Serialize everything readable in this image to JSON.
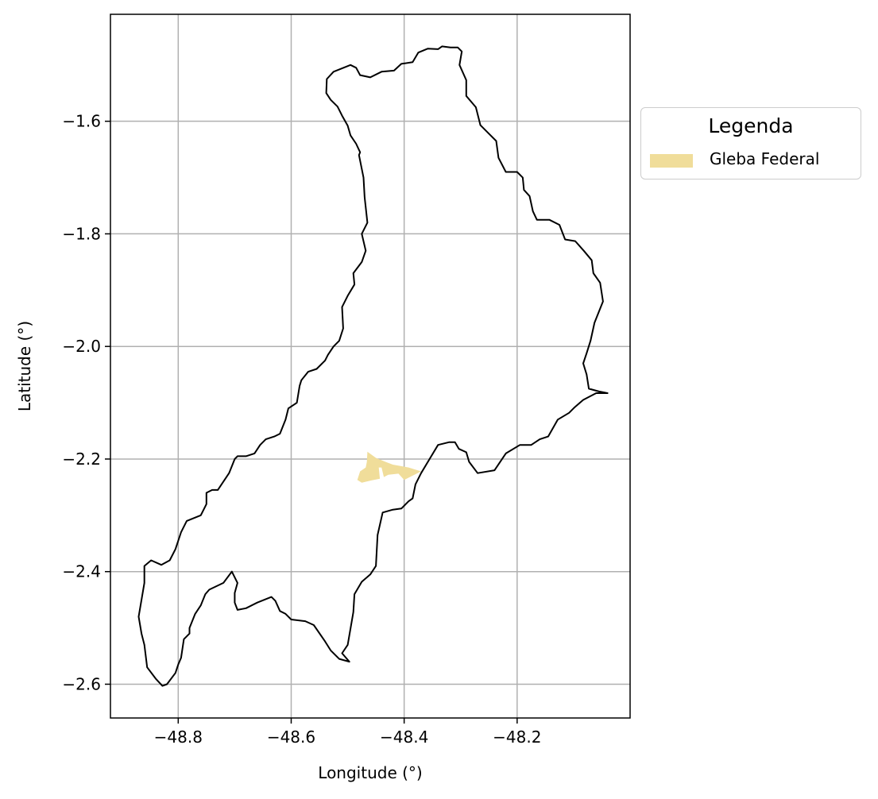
{
  "chart_data": {
    "type": "map",
    "xlabel": "Longitude (°)",
    "ylabel": "Latitude (°)",
    "xlim": [
      -48.92,
      -48.0
    ],
    "ylim": [
      -2.66,
      -1.41
    ],
    "x_ticks": [
      -48.8,
      -48.6,
      -48.4,
      -48.2
    ],
    "y_ticks": [
      -1.6,
      -1.8,
      -2.0,
      -2.2,
      -2.4,
      -2.6
    ],
    "x_tick_labels": [
      "−48.8",
      "−48.6",
      "−48.4",
      "−48.2"
    ],
    "y_tick_labels": [
      "−1.6",
      "−1.8",
      "−2.0",
      "−2.2",
      "−2.4",
      "−2.6"
    ],
    "grid": true,
    "legend": {
      "title": "Legenda",
      "placement": "outside-right-top",
      "items": [
        {
          "label": "Gleba Federal",
          "color": "#f0dd9a"
        }
      ]
    },
    "boundary_color": "#000000",
    "boundary": [
      [
        -48.485,
        -1.505
      ],
      [
        -48.478,
        -1.518
      ],
      [
        -48.46,
        -1.522
      ],
      [
        -48.44,
        -1.512
      ],
      [
        -48.418,
        -1.51
      ],
      [
        -48.405,
        -1.498
      ],
      [
        -48.385,
        -1.495
      ],
      [
        -48.375,
        -1.478
      ],
      [
        -48.358,
        -1.471
      ],
      [
        -48.34,
        -1.472
      ],
      [
        -48.333,
        -1.467
      ],
      [
        -48.318,
        -1.469
      ],
      [
        -48.305,
        -1.469
      ],
      [
        -48.298,
        -1.476
      ],
      [
        -48.302,
        -1.5
      ],
      [
        -48.29,
        -1.527
      ],
      [
        -48.29,
        -1.555
      ],
      [
        -48.273,
        -1.575
      ],
      [
        -48.265,
        -1.607
      ],
      [
        -48.25,
        -1.622
      ],
      [
        -48.237,
        -1.635
      ],
      [
        -48.233,
        -1.665
      ],
      [
        -48.22,
        -1.69
      ],
      [
        -48.2,
        -1.69
      ],
      [
        -48.19,
        -1.7
      ],
      [
        -48.188,
        -1.722
      ],
      [
        -48.178,
        -1.733
      ],
      [
        -48.172,
        -1.76
      ],
      [
        -48.165,
        -1.775
      ],
      [
        -48.143,
        -1.775
      ],
      [
        -48.125,
        -1.784
      ],
      [
        -48.115,
        -1.81
      ],
      [
        -48.097,
        -1.813
      ],
      [
        -48.082,
        -1.83
      ],
      [
        -48.068,
        -1.847
      ],
      [
        -48.065,
        -1.87
      ],
      [
        -48.053,
        -1.887
      ],
      [
        -48.048,
        -1.92
      ],
      [
        -48.063,
        -1.958
      ],
      [
        -48.07,
        -1.99
      ],
      [
        -48.077,
        -2.012
      ],
      [
        -48.083,
        -2.03
      ],
      [
        -48.077,
        -2.05
      ],
      [
        -48.073,
        -2.075
      ],
      [
        -48.055,
        -2.08
      ],
      [
        -48.04,
        -2.083
      ],
      [
        -48.06,
        -2.083
      ],
      [
        -48.083,
        -2.095
      ],
      [
        -48.098,
        -2.108
      ],
      [
        -48.108,
        -2.118
      ],
      [
        -48.128,
        -2.13
      ],
      [
        -48.145,
        -2.16
      ],
      [
        -48.16,
        -2.165
      ],
      [
        -48.175,
        -2.175
      ],
      [
        -48.195,
        -2.175
      ],
      [
        -48.22,
        -2.19
      ],
      [
        -48.24,
        -2.22
      ],
      [
        -48.27,
        -2.225
      ],
      [
        -48.285,
        -2.205
      ],
      [
        -48.29,
        -2.188
      ],
      [
        -48.303,
        -2.182
      ],
      [
        -48.31,
        -2.17
      ],
      [
        -48.32,
        -2.17
      ],
      [
        -48.34,
        -2.175
      ],
      [
        -48.355,
        -2.2
      ],
      [
        -48.37,
        -2.225
      ],
      [
        -48.38,
        -2.245
      ],
      [
        -48.385,
        -2.27
      ],
      [
        -48.392,
        -2.275
      ],
      [
        -48.405,
        -2.288
      ],
      [
        -48.42,
        -2.29
      ],
      [
        -48.438,
        -2.295
      ],
      [
        -48.447,
        -2.335
      ],
      [
        -48.45,
        -2.39
      ],
      [
        -48.46,
        -2.405
      ],
      [
        -48.475,
        -2.418
      ],
      [
        -48.488,
        -2.44
      ],
      [
        -48.49,
        -2.472
      ],
      [
        -48.5,
        -2.53
      ],
      [
        -48.51,
        -2.545
      ],
      [
        -48.497,
        -2.56
      ],
      [
        -48.515,
        -2.555
      ],
      [
        -48.53,
        -2.54
      ],
      [
        -48.54,
        -2.524
      ],
      [
        -48.56,
        -2.495
      ],
      [
        -48.575,
        -2.488
      ],
      [
        -48.6,
        -2.485
      ],
      [
        -48.61,
        -2.475
      ],
      [
        -48.62,
        -2.47
      ],
      [
        -48.628,
        -2.452
      ],
      [
        -48.635,
        -2.445
      ],
      [
        -48.66,
        -2.455
      ],
      [
        -48.68,
        -2.465
      ],
      [
        -48.695,
        -2.468
      ],
      [
        -48.7,
        -2.455
      ],
      [
        -48.7,
        -2.438
      ],
      [
        -48.695,
        -2.42
      ],
      [
        -48.705,
        -2.4
      ],
      [
        -48.72,
        -2.42
      ],
      [
        -48.745,
        -2.432
      ],
      [
        -48.752,
        -2.44
      ],
      [
        -48.76,
        -2.46
      ],
      [
        -48.77,
        -2.475
      ],
      [
        -48.78,
        -2.5
      ],
      [
        -48.78,
        -2.51
      ],
      [
        -48.79,
        -2.52
      ],
      [
        -48.795,
        -2.553
      ],
      [
        -48.8,
        -2.565
      ],
      [
        -48.805,
        -2.58
      ],
      [
        -48.82,
        -2.6
      ],
      [
        -48.828,
        -2.603
      ],
      [
        -48.84,
        -2.59
      ],
      [
        -48.855,
        -2.57
      ],
      [
        -48.86,
        -2.53
      ],
      [
        -48.865,
        -2.51
      ],
      [
        -48.87,
        -2.48
      ],
      [
        -48.865,
        -2.45
      ],
      [
        -48.86,
        -2.42
      ],
      [
        -48.86,
        -2.39
      ],
      [
        -48.848,
        -2.38
      ],
      [
        -48.83,
        -2.388
      ],
      [
        -48.815,
        -2.38
      ],
      [
        -48.805,
        -2.36
      ],
      [
        -48.795,
        -2.33
      ],
      [
        -48.785,
        -2.31
      ],
      [
        -48.76,
        -2.3
      ],
      [
        -48.75,
        -2.28
      ],
      [
        -48.75,
        -2.26
      ],
      [
        -48.74,
        -2.255
      ],
      [
        -48.73,
        -2.255
      ],
      [
        -48.72,
        -2.24
      ],
      [
        -48.71,
        -2.225
      ],
      [
        -48.7,
        -2.2
      ],
      [
        -48.695,
        -2.195
      ],
      [
        -48.68,
        -2.195
      ],
      [
        -48.665,
        -2.19
      ],
      [
        -48.655,
        -2.175
      ],
      [
        -48.645,
        -2.165
      ],
      [
        -48.63,
        -2.16
      ],
      [
        -48.62,
        -2.155
      ],
      [
        -48.61,
        -2.13
      ],
      [
        -48.605,
        -2.11
      ],
      [
        -48.59,
        -2.1
      ],
      [
        -48.585,
        -2.07
      ],
      [
        -48.582,
        -2.06
      ],
      [
        -48.57,
        -2.045
      ],
      [
        -48.555,
        -2.04
      ],
      [
        -48.54,
        -2.025
      ],
      [
        -48.535,
        -2.015
      ],
      [
        -48.525,
        -2.0
      ],
      [
        -48.515,
        -1.99
      ],
      [
        -48.508,
        -1.968
      ],
      [
        -48.51,
        -1.93
      ],
      [
        -48.5,
        -1.91
      ],
      [
        -48.488,
        -1.89
      ],
      [
        -48.49,
        -1.87
      ],
      [
        -48.475,
        -1.85
      ],
      [
        -48.468,
        -1.83
      ],
      [
        -48.475,
        -1.8
      ],
      [
        -48.465,
        -1.78
      ],
      [
        -48.47,
        -1.735
      ],
      [
        -48.472,
        -1.7
      ],
      [
        -48.48,
        -1.66
      ],
      [
        -48.478,
        -1.655
      ],
      [
        -48.485,
        -1.64
      ],
      [
        -48.495,
        -1.625
      ],
      [
        -48.5,
        -1.608
      ],
      [
        -48.51,
        -1.59
      ],
      [
        -48.518,
        -1.574
      ],
      [
        -48.53,
        -1.562
      ],
      [
        -48.538,
        -1.55
      ],
      [
        -48.537,
        -1.525
      ],
      [
        -48.525,
        -1.512
      ],
      [
        -48.495,
        -1.5
      ],
      [
        -48.485,
        -1.505
      ]
    ],
    "gleba_federal": [
      [
        -48.465,
        -2.187
      ],
      [
        -48.45,
        -2.198
      ],
      [
        -48.433,
        -2.205
      ],
      [
        -48.42,
        -2.21
      ],
      [
        -48.392,
        -2.215
      ],
      [
        -48.37,
        -2.222
      ],
      [
        -48.4,
        -2.237
      ],
      [
        -48.41,
        -2.226
      ],
      [
        -48.428,
        -2.228
      ],
      [
        -48.436,
        -2.232
      ],
      [
        -48.44,
        -2.215
      ],
      [
        -48.445,
        -2.215
      ],
      [
        -48.443,
        -2.235
      ],
      [
        -48.458,
        -2.238
      ],
      [
        -48.475,
        -2.242
      ],
      [
        -48.483,
        -2.237
      ],
      [
        -48.478,
        -2.222
      ],
      [
        -48.468,
        -2.215
      ],
      [
        -48.466,
        -2.205
      ],
      [
        -48.465,
        -2.187
      ]
    ]
  }
}
